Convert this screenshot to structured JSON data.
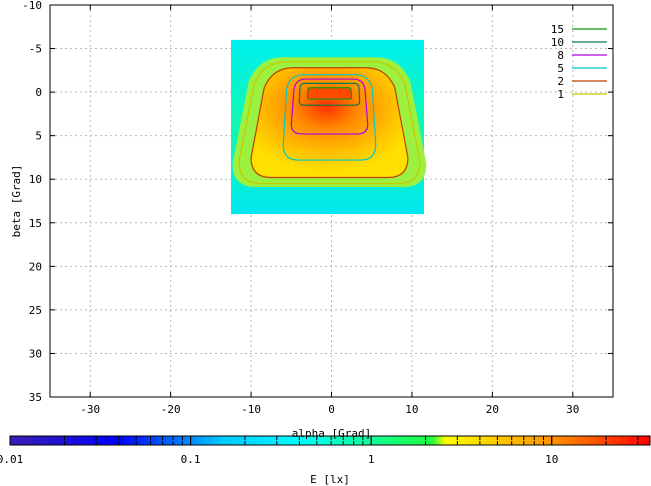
{
  "chart_data": {
    "type": "heatmap",
    "xlabel": "alpha [Grad]",
    "ylabel": "beta [Grad]",
    "xlim": [
      -35,
      35
    ],
    "ylim": [
      -10,
      35
    ],
    "y_inverted": true,
    "grid": true,
    "x_ticks": [
      -30,
      -20,
      -10,
      0,
      10,
      20,
      30
    ],
    "y_ticks": [
      -10,
      -5,
      0,
      5,
      10,
      15,
      20,
      25,
      30,
      35
    ],
    "heatmap_extent": {
      "alpha": [
        -12.5,
        11.5
      ],
      "beta": [
        -6,
        14
      ]
    },
    "contour_legend": {
      "position": "top-right",
      "levels": [
        {
          "label": "15",
          "color": "#109810"
        },
        {
          "label": "10",
          "color": "#0a7a4a"
        },
        {
          "label": "8",
          "color": "#b000e0"
        },
        {
          "label": "5",
          "color": "#00c8c8"
        },
        {
          "label": "2",
          "color": "#c04000"
        },
        {
          "label": "1",
          "color": "#c8c800"
        }
      ]
    },
    "contours": [
      {
        "level": "1",
        "alpha_span": [
          -11.5,
          11
        ],
        "beta_span": [
          -3.5,
          10.5
        ]
      },
      {
        "level": "2",
        "alpha_span": [
          -10,
          9.5
        ],
        "beta_span": [
          -2.8,
          9.8
        ]
      },
      {
        "level": "5",
        "alpha_span": [
          -6,
          5.5
        ],
        "beta_span": [
          -2,
          7.8
        ]
      },
      {
        "level": "8",
        "alpha_span": [
          -5,
          4.5
        ],
        "beta_span": [
          -1.5,
          4.8
        ]
      },
      {
        "level": "10",
        "alpha_span": [
          -4,
          3.5
        ],
        "beta_span": [
          -1,
          1.5
        ]
      },
      {
        "level": "15",
        "alpha_span": [
          -3,
          2.5
        ],
        "beta_span": [
          -0.5,
          0.8
        ]
      }
    ],
    "colorbar": {
      "label": "E [lx]",
      "scale": "log",
      "range": [
        0.01,
        35
      ],
      "ticks": [
        "0.01",
        "0.1",
        "1",
        "10"
      ],
      "colors": [
        "#3a1fb0",
        "#0000ff",
        "#00c8ff",
        "#00ffff",
        "#20ff40",
        "#ffff00",
        "#ff9000",
        "#ff0000"
      ]
    }
  }
}
